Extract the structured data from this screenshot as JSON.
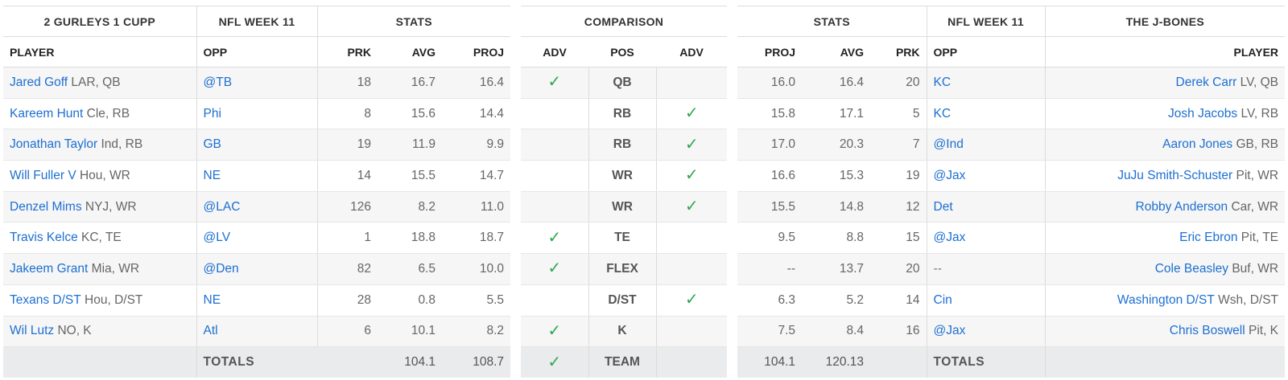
{
  "left": {
    "team": "2 GURLEYS 1 CUPP",
    "week": "NFL WEEK 11",
    "stats": "STATS",
    "cols": {
      "player": "PLAYER",
      "opp": "OPP",
      "prk": "PRK",
      "avg": "AVG",
      "proj": "PROJ"
    },
    "rows": [
      {
        "name": "Jared Goff",
        "meta": "LAR, QB",
        "opp": "@TB",
        "prk": "18",
        "avg": "16.7",
        "proj": "16.4"
      },
      {
        "name": "Kareem Hunt",
        "meta": "Cle, RB",
        "opp": "Phi",
        "prk": "8",
        "avg": "15.6",
        "proj": "14.4"
      },
      {
        "name": "Jonathan Taylor",
        "meta": "Ind, RB",
        "opp": "GB",
        "prk": "19",
        "avg": "11.9",
        "proj": "9.9"
      },
      {
        "name": "Will Fuller V",
        "meta": "Hou, WR",
        "opp": "NE",
        "prk": "14",
        "avg": "15.5",
        "proj": "14.7"
      },
      {
        "name": "Denzel Mims",
        "meta": "NYJ, WR",
        "opp": "@LAC",
        "prk": "126",
        "avg": "8.2",
        "proj": "11.0"
      },
      {
        "name": "Travis Kelce",
        "meta": "KC, TE",
        "opp": "@LV",
        "prk": "1",
        "avg": "18.8",
        "proj": "18.7"
      },
      {
        "name": "Jakeem Grant",
        "meta": "Mia, WR",
        "opp": "@Den",
        "prk": "82",
        "avg": "6.5",
        "proj": "10.0"
      },
      {
        "name": "Texans D/ST",
        "meta": "Hou, D/ST",
        "opp": "NE",
        "prk": "28",
        "avg": "0.8",
        "proj": "5.5"
      },
      {
        "name": "Wil Lutz",
        "meta": "NO, K",
        "opp": "Atl",
        "prk": "6",
        "avg": "10.1",
        "proj": "8.2"
      }
    ],
    "totals": {
      "label": "TOTALS",
      "avg": "104.1",
      "proj": "108.7"
    }
  },
  "comparison": {
    "title": "COMPARISON",
    "cols": {
      "adv_left": "ADV",
      "pos": "POS",
      "adv_right": "ADV"
    },
    "rows": [
      {
        "pos": "QB",
        "left": true,
        "right": false
      },
      {
        "pos": "RB",
        "left": false,
        "right": true
      },
      {
        "pos": "RB",
        "left": false,
        "right": true
      },
      {
        "pos": "WR",
        "left": false,
        "right": true
      },
      {
        "pos": "WR",
        "left": false,
        "right": true
      },
      {
        "pos": "TE",
        "left": true,
        "right": false
      },
      {
        "pos": "FLEX",
        "left": true,
        "right": false
      },
      {
        "pos": "D/ST",
        "left": false,
        "right": true
      },
      {
        "pos": "K",
        "left": true,
        "right": false
      }
    ],
    "totals": {
      "pos": "TEAM",
      "left": true,
      "right": false
    },
    "check_icon": "checkmark-icon",
    "check_color": "#2fa84f"
  },
  "right": {
    "team": "THE J-BONES",
    "week": "NFL WEEK 11",
    "stats": "STATS",
    "cols": {
      "proj": "PROJ",
      "avg": "AVG",
      "prk": "PRK",
      "opp": "OPP",
      "player": "PLAYER"
    },
    "rows": [
      {
        "proj": "16.0",
        "avg": "16.4",
        "prk": "20",
        "opp": "KC",
        "name": "Derek Carr",
        "meta": "LV, QB"
      },
      {
        "proj": "15.8",
        "avg": "17.1",
        "prk": "5",
        "opp": "KC",
        "name": "Josh Jacobs",
        "meta": "LV, RB"
      },
      {
        "proj": "17.0",
        "avg": "20.3",
        "prk": "7",
        "opp": "@Ind",
        "name": "Aaron Jones",
        "meta": "GB, RB"
      },
      {
        "proj": "16.6",
        "avg": "15.3",
        "prk": "19",
        "opp": "@Jax",
        "name": "JuJu Smith-Schuster",
        "meta": "Pit, WR"
      },
      {
        "proj": "15.5",
        "avg": "14.8",
        "prk": "12",
        "opp": "Det",
        "name": "Robby Anderson",
        "meta": "Car, WR"
      },
      {
        "proj": "9.5",
        "avg": "8.8",
        "prk": "15",
        "opp": "@Jax",
        "name": "Eric Ebron",
        "meta": "Pit, TE"
      },
      {
        "proj": "--",
        "avg": "13.7",
        "prk": "20",
        "opp": "--",
        "name": "Cole Beasley",
        "meta": "Buf, WR"
      },
      {
        "proj": "6.3",
        "avg": "5.2",
        "prk": "14",
        "opp": "Cin",
        "name": "Washington D/ST",
        "meta": "Wsh, D/ST"
      },
      {
        "proj": "7.5",
        "avg": "8.4",
        "prk": "16",
        "opp": "@Jax",
        "name": "Chris Boswell",
        "meta": "Pit, K"
      }
    ],
    "totals": {
      "proj": "104.1",
      "avg": "120.13",
      "label": "TOTALS"
    }
  },
  "link_color": "#1d6fd1"
}
